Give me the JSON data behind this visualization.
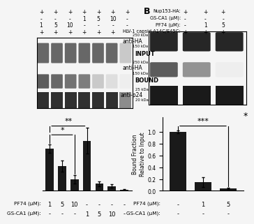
{
  "background_color": "#f0f0f0",
  "white": "#ffffff",
  "dark": "#1a1a1a",
  "panel_A_bars": {
    "bar_values": [
      0.72,
      0.42,
      0.2,
      0.85,
      0.12,
      0.08,
      0.02
    ],
    "bar_errors": [
      0.07,
      0.1,
      0.07,
      0.22,
      0.04,
      0.03,
      0.01
    ],
    "xlabel_row1": [
      "1",
      "5",
      "10",
      "-",
      "-",
      "-",
      "-"
    ],
    "xlabel_row2": [
      "-",
      "-",
      "-",
      "1",
      "5",
      "10",
      "-"
    ],
    "label_row1": "PF74 (μM):",
    "label_row2": "GS-CA1 (μM):",
    "ylim": [
      0,
      1.25
    ]
  },
  "panel_B_bars": {
    "bar_values": [
      1.0,
      0.15,
      0.04
    ],
    "bar_errors": [
      0.02,
      0.08,
      0.015
    ],
    "xlabel_row1": [
      "-",
      "1",
      "5"
    ],
    "xlabel_row2": [
      "-",
      "-",
      "-"
    ],
    "label_row1": "PF74 (μM):",
    "label_row2": "GS-CA1 (μM):",
    "ylabel": "Bound Fraction\nRelative to Input",
    "ylim": [
      0,
      1.25
    ],
    "yticks": [
      0.0,
      0.2,
      0.4,
      0.6,
      0.8,
      1.0
    ]
  },
  "gel_A_header_rows": [
    [
      "+",
      "+",
      "+",
      "+",
      "+",
      "+",
      "+"
    ],
    [
      "-",
      "-",
      "-",
      "1",
      "5",
      "10",
      "-"
    ],
    [
      "1",
      "5",
      "10",
      "-",
      "-",
      "-",
      "-"
    ],
    [
      "+",
      "+",
      "+",
      "+",
      "+",
      "+",
      "-"
    ]
  ],
  "gel_B_header_rows": [
    [
      "Nup153-HA:",
      "+",
      "+",
      "+"
    ],
    [
      "GS-CA1 (μM):",
      "-",
      "-",
      "-"
    ],
    [
      "PF74 (μM):",
      "-",
      "1",
      "5"
    ],
    [
      "HIV-1 capsid A14C/E45C:",
      "+",
      "+",
      "+"
    ]
  ],
  "panel_B_blot_labels": [
    "anti-HA",
    "anti-HA",
    "anti-p24"
  ],
  "panel_B_kda_labels": [
    [
      "250 kDa",
      "150 kDa"
    ],
    [
      "250 kDa",
      "150 kDa"
    ],
    [
      "25 kDa",
      "20 kDa"
    ]
  ]
}
